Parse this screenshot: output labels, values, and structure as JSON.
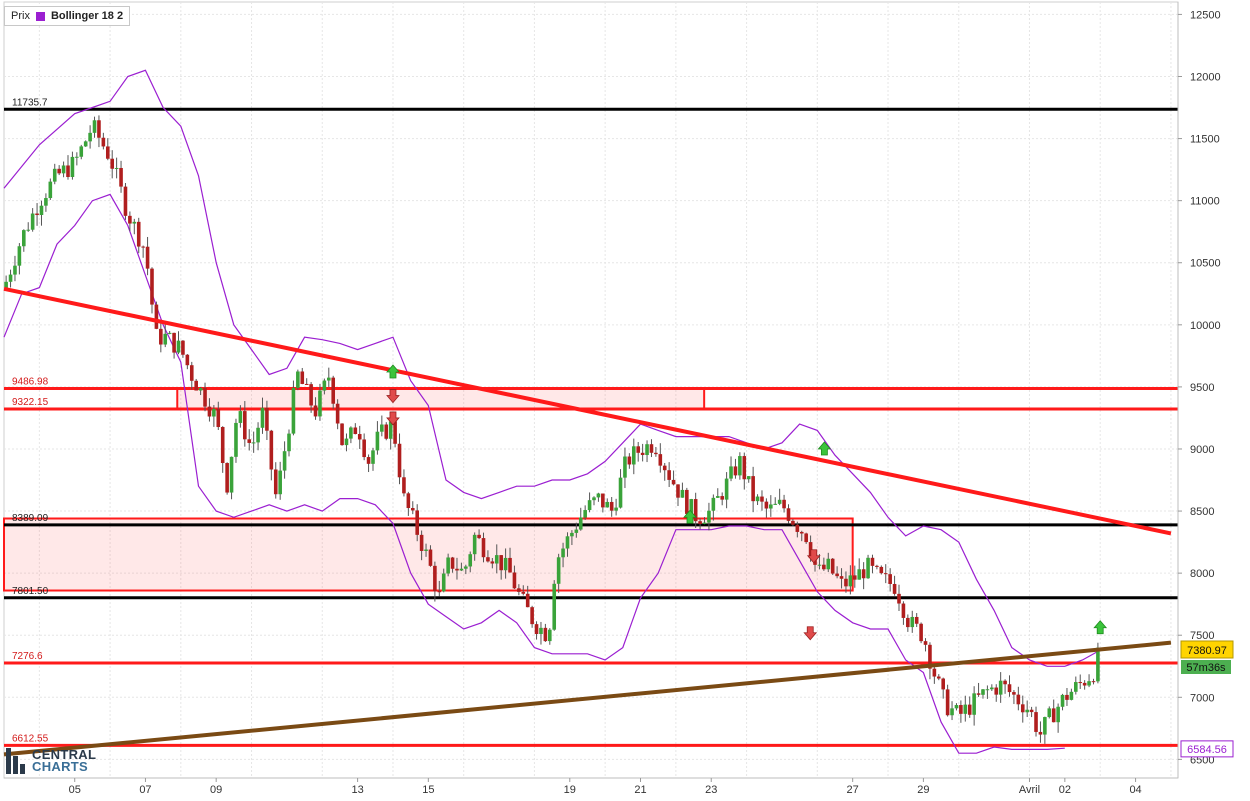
{
  "legend": {
    "price_label": "Prix",
    "indicator_label": "Bollinger 18 2",
    "indicator_color": "#9b1fd1"
  },
  "logo": {
    "line1": "CENTRAL",
    "line2": "CHARTS"
  },
  "chart_data": {
    "type": "candlestick",
    "y_axis": {
      "min": 6350,
      "max": 12600,
      "ticks": [
        6500,
        7000,
        7500,
        8000,
        8500,
        9000,
        9500,
        10000,
        10500,
        11000,
        11500,
        12000,
        12500
      ]
    },
    "x_axis": {
      "start_day": 3,
      "tick_labels": [
        {
          "day": 5,
          "label": "05"
        },
        {
          "day": 7,
          "label": "07"
        },
        {
          "day": 9,
          "label": "09"
        },
        {
          "day": 13,
          "label": "13"
        },
        {
          "day": 15,
          "label": "15"
        },
        {
          "day": 19,
          "label": "19"
        },
        {
          "day": 21,
          "label": "21"
        },
        {
          "day": 23,
          "label": "23"
        },
        {
          "day": 27,
          "label": "27"
        },
        {
          "day": 29,
          "label": "29"
        },
        {
          "day": 32,
          "label": "Avril"
        },
        {
          "day": 33,
          "label": "02"
        },
        {
          "day": 35,
          "label": "04"
        }
      ]
    },
    "price_key_points": [
      [
        3.0,
        10300
      ],
      [
        3.5,
        10700
      ],
      [
        4.0,
        11000
      ],
      [
        4.5,
        11200
      ],
      [
        5.0,
        11300
      ],
      [
        5.5,
        11600
      ],
      [
        6.0,
        11350
      ],
      [
        6.5,
        10900
      ],
      [
        7.0,
        10600
      ],
      [
        7.3,
        9900
      ],
      [
        7.6,
        9900
      ],
      [
        8.0,
        9800
      ],
      [
        8.3,
        9600
      ],
      [
        9.0,
        9250
      ],
      [
        9.3,
        8700
      ],
      [
        9.6,
        9300
      ],
      [
        10.0,
        9000
      ],
      [
        10.3,
        9300
      ],
      [
        10.7,
        8600
      ],
      [
        11.0,
        9100
      ],
      [
        11.3,
        9600
      ],
      [
        11.8,
        9300
      ],
      [
        12.2,
        9600
      ],
      [
        12.6,
        9000
      ],
      [
        13.0,
        9200
      ],
      [
        13.3,
        8900
      ],
      [
        13.6,
        9100
      ],
      [
        14.0,
        9200
      ],
      [
        14.3,
        8600
      ],
      [
        14.6,
        8400
      ],
      [
        15.0,
        8100
      ],
      [
        15.3,
        7800
      ],
      [
        15.6,
        8100
      ],
      [
        16.0,
        8000
      ],
      [
        16.3,
        8300
      ],
      [
        16.6,
        8200
      ],
      [
        17.0,
        8100
      ],
      [
        17.3,
        8000
      ],
      [
        17.6,
        7800
      ],
      [
        18.0,
        7600
      ],
      [
        18.4,
        7500
      ],
      [
        18.6,
        8100
      ],
      [
        19.0,
        8300
      ],
      [
        19.4,
        8500
      ],
      [
        19.8,
        8600
      ],
      [
        20.2,
        8500
      ],
      [
        20.6,
        8900
      ],
      [
        21.0,
        9000
      ],
      [
        21.4,
        9050
      ],
      [
        21.8,
        8800
      ],
      [
        22.2,
        8600
      ],
      [
        22.6,
        8450
      ],
      [
        23.0,
        8500
      ],
      [
        23.4,
        8700
      ],
      [
        23.8,
        8900
      ],
      [
        24.2,
        8600
      ],
      [
        24.6,
        8500
      ],
      [
        25.0,
        8550
      ],
      [
        25.4,
        8400
      ],
      [
        25.7,
        8300
      ],
      [
        26.0,
        8000
      ],
      [
        26.3,
        8050
      ],
      [
        26.7,
        7900
      ],
      [
        27.0,
        7950
      ],
      [
        27.4,
        8050
      ],
      [
        27.8,
        7950
      ],
      [
        28.2,
        7900
      ],
      [
        28.6,
        7600
      ],
      [
        29.0,
        7500
      ],
      [
        29.3,
        7200
      ],
      [
        29.6,
        6950
      ],
      [
        30.0,
        6850
      ],
      [
        30.4,
        6950
      ],
      [
        30.8,
        7050
      ],
      [
        31.2,
        7100
      ],
      [
        31.6,
        7000
      ],
      [
        32.0,
        6900
      ],
      [
        32.3,
        6700
      ],
      [
        32.6,
        6850
      ],
      [
        33.0,
        7000
      ],
      [
        33.4,
        7100
      ],
      [
        33.8,
        7200
      ],
      [
        34.0,
        7380
      ]
    ],
    "bollinger_upper_points": [
      [
        3.0,
        11100
      ],
      [
        4.0,
        11450
      ],
      [
        5.0,
        11700
      ],
      [
        5.5,
        11750
      ],
      [
        6.0,
        11800
      ],
      [
        6.5,
        12000
      ],
      [
        7.0,
        12050
      ],
      [
        7.5,
        11750
      ],
      [
        8.0,
        11600
      ],
      [
        8.5,
        11200
      ],
      [
        9.0,
        10500
      ],
      [
        9.5,
        10000
      ],
      [
        10.0,
        9800
      ],
      [
        10.5,
        9600
      ],
      [
        11.0,
        9650
      ],
      [
        11.5,
        9900
      ],
      [
        12.0,
        9880
      ],
      [
        12.5,
        9850
      ],
      [
        13.0,
        9800
      ],
      [
        13.5,
        9850
      ],
      [
        14.0,
        9900
      ],
      [
        14.5,
        9550
      ],
      [
        15.0,
        9350
      ],
      [
        15.5,
        8750
      ],
      [
        16.0,
        8650
      ],
      [
        16.5,
        8600
      ],
      [
        17.0,
        8650
      ],
      [
        17.5,
        8700
      ],
      [
        18.0,
        8700
      ],
      [
        18.5,
        8750
      ],
      [
        19.0,
        8750
      ],
      [
        19.5,
        8800
      ],
      [
        20.0,
        8900
      ],
      [
        20.5,
        9050
      ],
      [
        21.0,
        9200
      ],
      [
        21.5,
        9150
      ],
      [
        22.0,
        9100
      ],
      [
        22.5,
        9100
      ],
      [
        23.0,
        9100
      ],
      [
        23.5,
        9100
      ],
      [
        24.0,
        9050
      ],
      [
        24.5,
        9000
      ],
      [
        25.0,
        9050
      ],
      [
        25.5,
        9200
      ],
      [
        26.0,
        9150
      ],
      [
        26.5,
        8950
      ],
      [
        27.0,
        8800
      ],
      [
        27.5,
        8650
      ],
      [
        28.0,
        8450
      ],
      [
        28.5,
        8300
      ],
      [
        29.0,
        8380
      ],
      [
        29.5,
        8350
      ],
      [
        30.0,
        8250
      ],
      [
        30.5,
        7950
      ],
      [
        31.0,
        7700
      ],
      [
        31.5,
        7400
      ],
      [
        32.0,
        7300
      ],
      [
        32.5,
        7250
      ],
      [
        33.0,
        7250
      ],
      [
        33.5,
        7300
      ],
      [
        34.0,
        7380
      ]
    ],
    "bollinger_lower_points": [
      [
        3.0,
        9900
      ],
      [
        3.5,
        10250
      ],
      [
        4.0,
        10300
      ],
      [
        4.5,
        10650
      ],
      [
        5.0,
        10800
      ],
      [
        5.5,
        11000
      ],
      [
        6.0,
        11050
      ],
      [
        6.5,
        10800
      ],
      [
        7.0,
        10400
      ],
      [
        7.5,
        10000
      ],
      [
        8.0,
        9700
      ],
      [
        8.5,
        8700
      ],
      [
        9.0,
        8500
      ],
      [
        9.5,
        8450
      ],
      [
        10.0,
        8500
      ],
      [
        10.5,
        8550
      ],
      [
        11.0,
        8500
      ],
      [
        11.5,
        8550
      ],
      [
        12.0,
        8500
      ],
      [
        12.5,
        8600
      ],
      [
        13.0,
        8600
      ],
      [
        13.5,
        8550
      ],
      [
        14.0,
        8400
      ],
      [
        14.5,
        8000
      ],
      [
        15.0,
        7750
      ],
      [
        15.5,
        7650
      ],
      [
        16.0,
        7550
      ],
      [
        16.5,
        7600
      ],
      [
        17.0,
        7700
      ],
      [
        17.5,
        7600
      ],
      [
        18.0,
        7400
      ],
      [
        18.5,
        7350
      ],
      [
        19.0,
        7350
      ],
      [
        19.5,
        7350
      ],
      [
        20.0,
        7300
      ],
      [
        20.5,
        7400
      ],
      [
        21.0,
        7800
      ],
      [
        21.5,
        8000
      ],
      [
        22.0,
        8350
      ],
      [
        22.5,
        8350
      ],
      [
        23.0,
        8350
      ],
      [
        23.5,
        8380
      ],
      [
        24.0,
        8380
      ],
      [
        24.5,
        8350
      ],
      [
        25.0,
        8350
      ],
      [
        25.5,
        8100
      ],
      [
        26.0,
        7850
      ],
      [
        26.5,
        7700
      ],
      [
        27.0,
        7600
      ],
      [
        27.5,
        7550
      ],
      [
        28.0,
        7550
      ],
      [
        28.5,
        7300
      ],
      [
        29.0,
        7200
      ],
      [
        29.5,
        6800
      ],
      [
        30.0,
        6550
      ],
      [
        30.5,
        6550
      ],
      [
        31.0,
        6600
      ],
      [
        31.5,
        6580
      ],
      [
        32.0,
        6580
      ],
      [
        32.5,
        6580
      ],
      [
        33.0,
        6590
      ]
    ],
    "horizontal_levels": [
      {
        "value": 11735.7,
        "label": "11735.7",
        "color": "#000000"
      },
      {
        "value": 9486.98,
        "label": "9486.98",
        "color": "#ff1a1a"
      },
      {
        "value": 9322.15,
        "label": "9322.15",
        "color": "#ff1a1a"
      },
      {
        "value": 8389.09,
        "label": "8389.09",
        "color": "#000000"
      },
      {
        "value": 7801.5,
        "label": "7801.50",
        "color": "#000000"
      },
      {
        "value": 7276.6,
        "label": "7276.6",
        "color": "#ff1a1a"
      },
      {
        "value": 6612.55,
        "label": "6612.55",
        "color": "#ff1a1a"
      }
    ],
    "shaded_zones": [
      {
        "day_from": 7.9,
        "day_to": 22.8,
        "y_from": 9322.15,
        "y_to": 9486.98
      },
      {
        "day_from": 3.0,
        "day_to": 27.0,
        "y_from": 7860,
        "y_to": 8440
      }
    ],
    "trendlines": [
      {
        "from": [
          3.0,
          10290
        ],
        "to": [
          36.0,
          8320
        ],
        "color": "#ff1a1a"
      },
      {
        "from": [
          3.0,
          6540
        ],
        "to": [
          36.0,
          7440
        ],
        "color": "#7a4a14"
      }
    ],
    "signal_arrows": [
      {
        "day": 14.0,
        "value": 9620,
        "direction": "up"
      },
      {
        "day": 14.0,
        "value": 9430,
        "direction": "down"
      },
      {
        "day": 14.0,
        "value": 9250,
        "direction": "down"
      },
      {
        "day": 22.4,
        "value": 8450,
        "direction": "up"
      },
      {
        "day": 25.9,
        "value": 8140,
        "direction": "down"
      },
      {
        "day": 25.8,
        "value": 7520,
        "direction": "down"
      },
      {
        "day": 26.2,
        "value": 9000,
        "direction": "up"
      },
      {
        "day": 34.0,
        "value": 7560,
        "direction": "up"
      }
    ],
    "price_tag": {
      "value": "7380.97",
      "timer": "57m36s",
      "bg": "#ffd400",
      "timer_bg": "#4caf50"
    },
    "indicator_tag": {
      "value": "6584.56",
      "color": "#9b1fd1"
    }
  }
}
